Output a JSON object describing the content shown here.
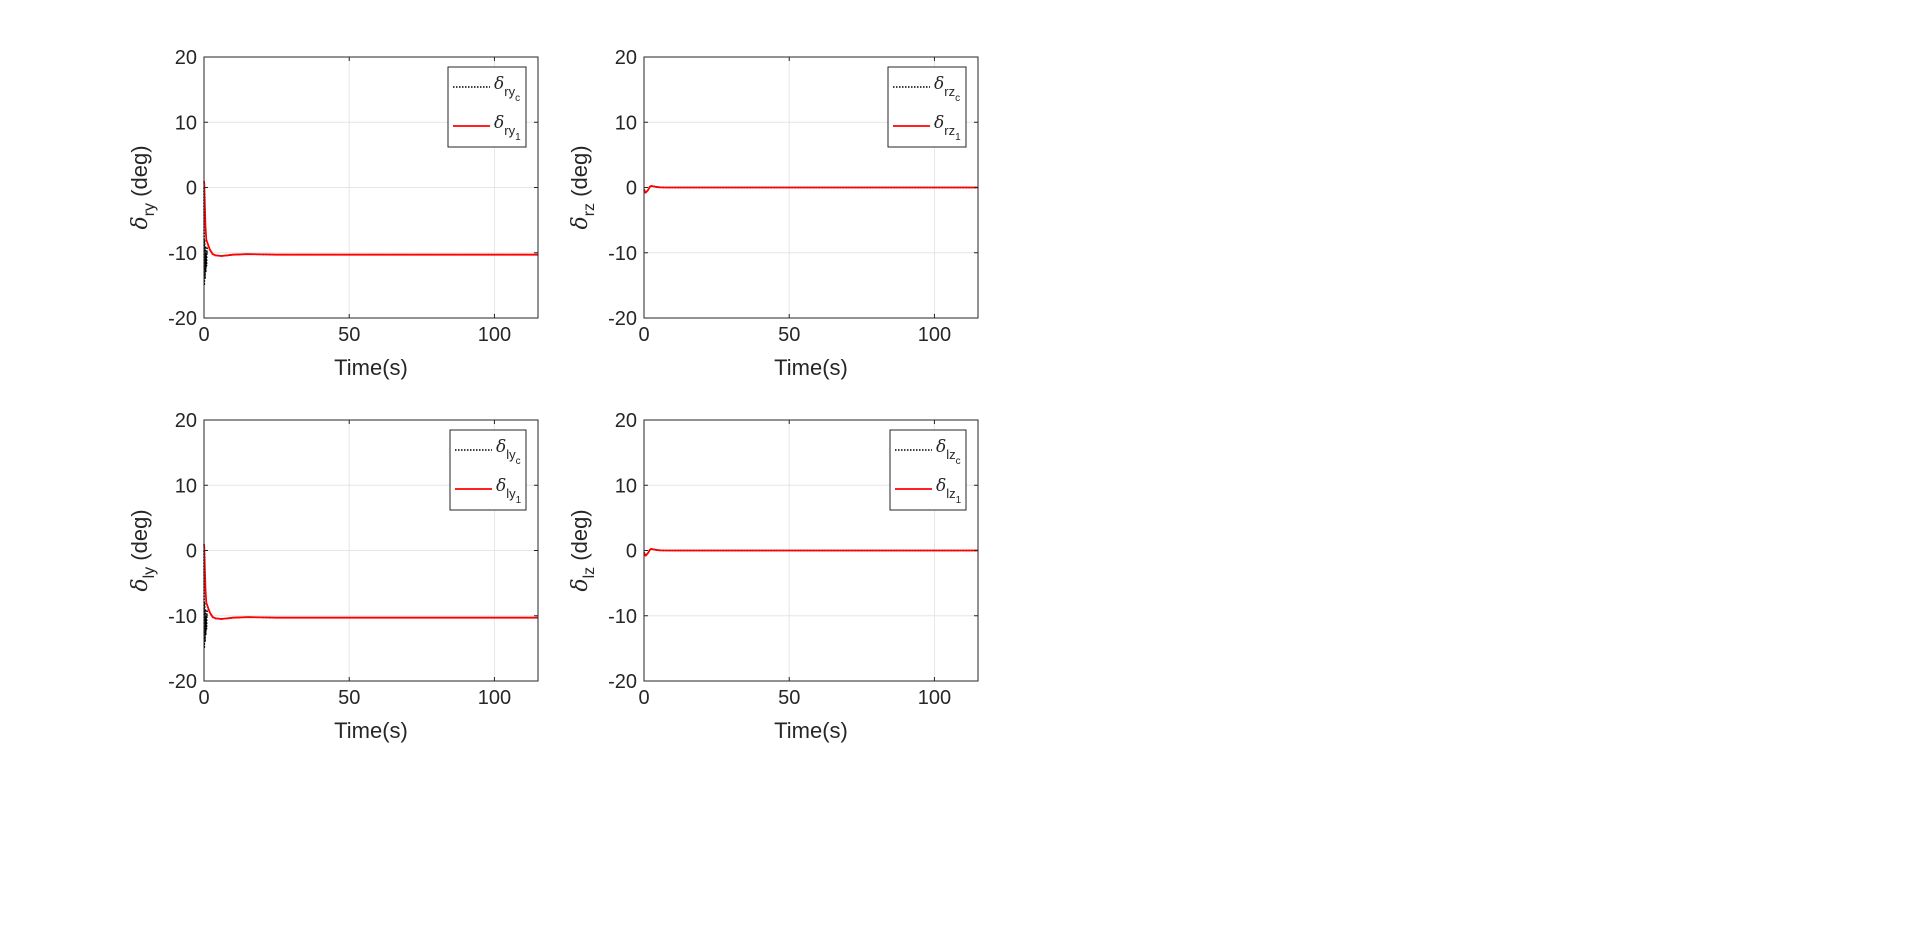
{
  "chart_data": [
    {
      "type": "line",
      "xlabel": "Time(s)",
      "ylabel": {
        "main": "δ",
        "sub": "ry",
        "unit": "(deg)"
      },
      "xlim": [
        0,
        115
      ],
      "ylim": [
        -20,
        20
      ],
      "xticks": [
        0,
        50,
        100
      ],
      "yticks": [
        -20,
        -10,
        0,
        10,
        20
      ],
      "grid": true,
      "legend_position": "top-right",
      "series": [
        {
          "name": "δ_ry_c",
          "legend": {
            "main": "δ",
            "sub": "ry",
            "subsub": "c"
          },
          "color": "#000000",
          "style": "dotted",
          "x": [
            0,
            0.1,
            0.2,
            0.35,
            0.5,
            0.6,
            0.7,
            0.85,
            1.0,
            1.2,
            1.5,
            2,
            3,
            4,
            6,
            8,
            10,
            15,
            20,
            25,
            30,
            40,
            50,
            60,
            80,
            100,
            115
          ],
          "y": [
            0,
            -15,
            -8,
            -14,
            -9,
            -13,
            -10,
            -12,
            -9.5,
            -9,
            -9,
            -9.5,
            -10.2,
            -10.4,
            -10.5,
            -10.4,
            -10.3,
            -10.2,
            -10.25,
            -10.3,
            -10.3,
            -10.3,
            -10.3,
            -10.3,
            -10.3,
            -10.3,
            -10.3
          ]
        },
        {
          "name": "δ_ry_1",
          "legend": {
            "main": "δ",
            "sub": "ry",
            "subsub": "1"
          },
          "color": "#ff0000",
          "style": "solid",
          "x": [
            0,
            0.1,
            0.3,
            0.5,
            0.8,
            1.2,
            1.6,
            2,
            3,
            4,
            6,
            8,
            10,
            15,
            20,
            25,
            30,
            40,
            50,
            60,
            80,
            100,
            115
          ],
          "y": [
            1,
            0.5,
            -3,
            -6,
            -8,
            -8.5,
            -9,
            -9.5,
            -10.2,
            -10.4,
            -10.5,
            -10.4,
            -10.3,
            -10.2,
            -10.25,
            -10.3,
            -10.3,
            -10.3,
            -10.3,
            -10.3,
            -10.3,
            -10.3,
            -10.3
          ]
        }
      ]
    },
    {
      "type": "line",
      "xlabel": "Time(s)",
      "ylabel": {
        "main": "δ",
        "sub": "rz",
        "unit": "(deg)"
      },
      "xlim": [
        0,
        115
      ],
      "ylim": [
        -20,
        20
      ],
      "xticks": [
        0,
        50,
        100
      ],
      "yticks": [
        -20,
        -10,
        0,
        10,
        20
      ],
      "grid": true,
      "legend_position": "top-right",
      "series": [
        {
          "name": "δ_rz_c",
          "legend": {
            "main": "δ",
            "sub": "rz",
            "subsub": "c"
          },
          "color": "#000000",
          "style": "dotted",
          "x": [
            0,
            0.5,
            1,
            1.5,
            2,
            2.5,
            3,
            4,
            5,
            6,
            8,
            10,
            15,
            20,
            50,
            100,
            115
          ],
          "y": [
            -0.3,
            -0.8,
            -0.6,
            -0.3,
            0.1,
            0.25,
            0.2,
            0.1,
            0.05,
            0.02,
            0,
            0,
            0,
            0,
            0,
            0,
            0
          ]
        },
        {
          "name": "δ_rz_1",
          "legend": {
            "main": "δ",
            "sub": "rz",
            "subsub": "1"
          },
          "color": "#ff0000",
          "style": "solid",
          "x": [
            0,
            0.5,
            1,
            1.5,
            2,
            2.5,
            3,
            4,
            5,
            6,
            8,
            10,
            15,
            20,
            50,
            100,
            115
          ],
          "y": [
            -0.3,
            -0.8,
            -0.6,
            -0.3,
            0.1,
            0.25,
            0.2,
            0.1,
            0.05,
            0.02,
            0,
            0,
            0,
            0,
            0,
            0,
            0
          ]
        }
      ]
    },
    {
      "type": "line",
      "xlabel": "Time(s)",
      "ylabel": {
        "main": "δ",
        "sub": "ly",
        "unit": "(deg)"
      },
      "xlim": [
        0,
        115
      ],
      "ylim": [
        -20,
        20
      ],
      "xticks": [
        0,
        50,
        100
      ],
      "yticks": [
        -20,
        -10,
        0,
        10,
        20
      ],
      "grid": true,
      "legend_position": "top-right",
      "series": [
        {
          "name": "δ_ly_c",
          "legend": {
            "main": "δ",
            "sub": "ly",
            "subsub": "c"
          },
          "color": "#000000",
          "style": "dotted",
          "x": [
            0,
            0.1,
            0.2,
            0.35,
            0.5,
            0.6,
            0.7,
            0.85,
            1.0,
            1.2,
            1.5,
            2,
            3,
            4,
            6,
            8,
            10,
            15,
            20,
            25,
            30,
            40,
            50,
            60,
            80,
            100,
            115
          ],
          "y": [
            0,
            -15,
            -8,
            -14,
            -9,
            -13,
            -10,
            -12,
            -9.5,
            -9,
            -9,
            -9.5,
            -10.2,
            -10.4,
            -10.5,
            -10.4,
            -10.3,
            -10.2,
            -10.25,
            -10.3,
            -10.3,
            -10.3,
            -10.3,
            -10.3,
            -10.3,
            -10.3,
            -10.3
          ]
        },
        {
          "name": "δ_ly_1",
          "legend": {
            "main": "δ",
            "sub": "ly",
            "subsub": "1"
          },
          "color": "#ff0000",
          "style": "solid",
          "x": [
            0,
            0.1,
            0.3,
            0.5,
            0.8,
            1.2,
            1.6,
            2,
            3,
            4,
            6,
            8,
            10,
            15,
            20,
            25,
            30,
            40,
            50,
            60,
            80,
            100,
            115
          ],
          "y": [
            1,
            0.5,
            -3,
            -6,
            -8,
            -8.5,
            -9,
            -9.5,
            -10.2,
            -10.4,
            -10.5,
            -10.4,
            -10.3,
            -10.2,
            -10.25,
            -10.3,
            -10.3,
            -10.3,
            -10.3,
            -10.3,
            -10.3,
            -10.3,
            -10.3
          ]
        }
      ]
    },
    {
      "type": "line",
      "xlabel": "Time(s)",
      "ylabel": {
        "main": "δ",
        "sub": "lz",
        "unit": "(deg)"
      },
      "xlim": [
        0,
        115
      ],
      "ylim": [
        -20,
        20
      ],
      "xticks": [
        0,
        50,
        100
      ],
      "yticks": [
        -20,
        -10,
        0,
        10,
        20
      ],
      "grid": true,
      "legend_position": "top-right",
      "series": [
        {
          "name": "δ_lz_c",
          "legend": {
            "main": "δ",
            "sub": "lz",
            "subsub": "c"
          },
          "color": "#000000",
          "style": "dotted",
          "x": [
            0,
            0.5,
            1,
            1.5,
            2,
            2.5,
            3,
            4,
            5,
            6,
            8,
            10,
            15,
            20,
            50,
            100,
            115
          ],
          "y": [
            -0.3,
            -0.8,
            -0.6,
            -0.3,
            0.1,
            0.25,
            0.2,
            0.1,
            0.05,
            0.02,
            0,
            0,
            0,
            0,
            0,
            0,
            0
          ]
        },
        {
          "name": "δ_lz_1",
          "legend": {
            "main": "δ",
            "sub": "lz",
            "subsub": "1"
          },
          "color": "#ff0000",
          "style": "solid",
          "x": [
            0,
            0.5,
            1,
            1.5,
            2,
            2.5,
            3,
            4,
            5,
            6,
            8,
            10,
            15,
            20,
            50,
            100,
            115
          ],
          "y": [
            -0.3,
            -0.8,
            -0.6,
            -0.3,
            0.1,
            0.25,
            0.2,
            0.1,
            0.05,
            0.02,
            0,
            0,
            0,
            0,
            0,
            0,
            0
          ]
        }
      ]
    }
  ]
}
